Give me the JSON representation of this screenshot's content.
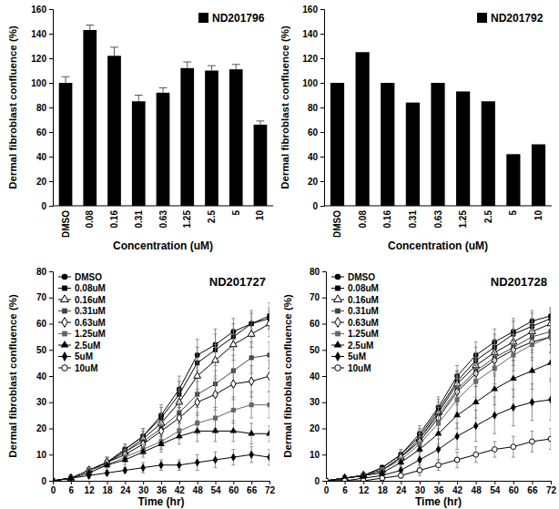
{
  "chart_data": [
    {
      "type": "bar",
      "x_label": "Concentration (uM)",
      "y_label": "Dermal fibroblast confluence (%)",
      "categories": [
        "DMSO",
        "0.08",
        "0.16",
        "0.31",
        "0.63",
        "1.25",
        "2.5",
        "5",
        "10"
      ],
      "series": [
        {
          "name": "ND201796",
          "color": "#000000",
          "values": [
            100,
            143,
            122,
            85,
            92,
            112,
            110,
            111,
            66
          ],
          "errors": [
            5,
            4,
            7,
            5,
            4,
            5,
            4,
            4,
            3
          ]
        }
      ],
      "ylim": [
        0,
        160
      ],
      "yticks": [
        0,
        20,
        40,
        60,
        80,
        100,
        120,
        140,
        160
      ],
      "legend": "upper right"
    },
    {
      "type": "bar",
      "x_label": "Concentration (uM)",
      "y_label": "Dermal fibroblast confluence (%)",
      "categories": [
        "DMSO",
        "0.08",
        "0.16",
        "0.31",
        "0.63",
        "1.25",
        "2.5",
        "5",
        "10"
      ],
      "series": [
        {
          "name": "ND201792",
          "color": "#000000",
          "values": [
            100,
            125,
            100,
            84,
            100,
            93,
            85,
            42,
            50
          ]
        }
      ],
      "ylim": [
        0,
        160
      ],
      "yticks": [
        0,
        20,
        40,
        60,
        80,
        100,
        120,
        140,
        160
      ],
      "legend": "upper right"
    },
    {
      "type": "line",
      "title": "ND201727",
      "x_label": "Time (hr)",
      "y_label": "Dermal fibroblast confluence (%)",
      "x": [
        0,
        6,
        12,
        18,
        24,
        30,
        36,
        42,
        48,
        54,
        60,
        66,
        72
      ],
      "xlim": [
        0,
        72
      ],
      "xticks": [
        0,
        6,
        12,
        18,
        24,
        30,
        36,
        42,
        48,
        54,
        60,
        66,
        72
      ],
      "ylim": [
        0,
        80
      ],
      "yticks": [
        0,
        10,
        20,
        30,
        40,
        50,
        60,
        70,
        80
      ],
      "legend": "upper left",
      "series": [
        {
          "name": "DMSO",
          "color": "#000000",
          "marker": "circle",
          "values": [
            0,
            1,
            4,
            7,
            12,
            17,
            25,
            35,
            48,
            52,
            57,
            60,
            62
          ],
          "errors": [
            0,
            1,
            1,
            2,
            2,
            3,
            4,
            5,
            6,
            6,
            5,
            4,
            4
          ]
        },
        {
          "name": "0.08uM",
          "color": "#000000",
          "marker": "square",
          "values": [
            0,
            1,
            4,
            7,
            12,
            17,
            24,
            33,
            45,
            50,
            55,
            60,
            63
          ],
          "errors": [
            0,
            1,
            1,
            2,
            2,
            3,
            4,
            5,
            6,
            6,
            5,
            5,
            5
          ]
        },
        {
          "name": "0.16uM",
          "color": "#000000",
          "marker": "open-triangle",
          "values": [
            0,
            1,
            4,
            7,
            11,
            16,
            22,
            30,
            40,
            46,
            52,
            56,
            60
          ],
          "errors": [
            0,
            1,
            1,
            2,
            2,
            3,
            4,
            5,
            6,
            6,
            6,
            5,
            5
          ]
        },
        {
          "name": "0.31uM",
          "color": "#444444",
          "marker": "square",
          "values": [
            0,
            1,
            4,
            7,
            11,
            15,
            20,
            26,
            33,
            37,
            42,
            47,
            48
          ],
          "errors": [
            0,
            1,
            1,
            1,
            2,
            3,
            3,
            4,
            5,
            5,
            6,
            6,
            5
          ]
        },
        {
          "name": "0.63uM",
          "color": "#000000",
          "marker": "open-diamond",
          "values": [
            0,
            1,
            4,
            7,
            10,
            14,
            19,
            24,
            30,
            33,
            37,
            38,
            40
          ],
          "errors": [
            0,
            1,
            1,
            1,
            2,
            3,
            3,
            4,
            5,
            6,
            6,
            6,
            6
          ]
        },
        {
          "name": "1.25uM",
          "color": "#666666",
          "marker": "square",
          "values": [
            0,
            1,
            4,
            6,
            9,
            12,
            15,
            19,
            22,
            24,
            27,
            29,
            29
          ],
          "errors": [
            0,
            1,
            1,
            1,
            2,
            2,
            3,
            3,
            4,
            4,
            5,
            5,
            5
          ]
        },
        {
          "name": "2.5uM",
          "color": "#000000",
          "marker": "triangle",
          "values": [
            0,
            1,
            3,
            6,
            8,
            11,
            14,
            17,
            19,
            19,
            19,
            18,
            18
          ],
          "errors": [
            0,
            1,
            1,
            1,
            2,
            2,
            3,
            3,
            4,
            4,
            4,
            4,
            3
          ]
        },
        {
          "name": "5uM",
          "color": "#000000",
          "marker": "diamond",
          "values": [
            0,
            1,
            2,
            3,
            4,
            5,
            6,
            6,
            7,
            8,
            9,
            10,
            9
          ],
          "errors": [
            0,
            1,
            1,
            1,
            1,
            2,
            2,
            2,
            3,
            3,
            3,
            3,
            3
          ]
        },
        {
          "name": "10uM",
          "color": "#000000",
          "marker": "open-circle",
          "values": [
            null,
            null,
            null,
            null,
            null,
            null,
            null,
            null,
            null,
            null,
            null,
            null,
            null
          ],
          "errors": [
            null,
            null,
            null,
            null,
            null,
            null,
            null,
            null,
            null,
            null,
            null,
            null,
            null
          ]
        }
      ]
    },
    {
      "type": "line",
      "title": "ND201728",
      "x_label": "Time (hr)",
      "y_label": "Dermal fibroblast confluence (%)",
      "x": [
        0,
        6,
        12,
        18,
        24,
        30,
        36,
        42,
        48,
        54,
        60,
        66,
        72
      ],
      "xlim": [
        0,
        72
      ],
      "xticks": [
        0,
        6,
        12,
        18,
        24,
        30,
        36,
        42,
        48,
        54,
        60,
        66,
        72
      ],
      "ylim": [
        0,
        80
      ],
      "yticks": [
        0,
        10,
        20,
        30,
        40,
        50,
        60,
        70,
        80
      ],
      "legend": "upper left",
      "series": [
        {
          "name": "DMSO",
          "color": "#000000",
          "marker": "circle",
          "values": [
            0,
            1,
            2,
            5,
            10,
            18,
            28,
            40,
            48,
            53,
            57,
            61,
            63
          ],
          "errors": [
            0,
            0,
            1,
            1,
            2,
            3,
            4,
            4,
            5,
            5,
            5,
            4,
            3
          ]
        },
        {
          "name": "0.08uM",
          "color": "#000000",
          "marker": "square",
          "values": [
            0,
            1,
            2,
            5,
            10,
            17,
            27,
            38,
            46,
            51,
            56,
            59,
            62
          ],
          "errors": [
            0,
            0,
            1,
            1,
            2,
            3,
            4,
            4,
            5,
            5,
            5,
            5,
            4
          ]
        },
        {
          "name": "0.16uM",
          "color": "#000000",
          "marker": "open-triangle",
          "values": [
            0,
            1,
            2,
            4,
            9,
            16,
            26,
            37,
            44,
            49,
            53,
            57,
            60
          ],
          "errors": [
            0,
            0,
            1,
            1,
            2,
            3,
            4,
            5,
            5,
            5,
            5,
            5,
            5
          ]
        },
        {
          "name": "0.31uM",
          "color": "#444444",
          "marker": "square",
          "values": [
            0,
            1,
            2,
            4,
            9,
            16,
            25,
            35,
            42,
            47,
            51,
            55,
            57
          ],
          "errors": [
            0,
            0,
            1,
            1,
            2,
            3,
            4,
            5,
            5,
            5,
            5,
            5,
            5
          ]
        },
        {
          "name": "0.63uM",
          "color": "#000000",
          "marker": "open-diamond",
          "values": [
            0,
            1,
            2,
            4,
            9,
            15,
            24,
            34,
            41,
            46,
            50,
            53,
            55
          ],
          "errors": [
            0,
            0,
            1,
            1,
            2,
            3,
            4,
            5,
            5,
            6,
            6,
            6,
            6
          ]
        },
        {
          "name": "1.25uM",
          "color": "#666666",
          "marker": "square",
          "values": [
            0,
            1,
            2,
            4,
            8,
            14,
            22,
            31,
            38,
            43,
            48,
            52,
            55
          ],
          "errors": [
            0,
            0,
            1,
            1,
            2,
            3,
            4,
            5,
            6,
            6,
            6,
            6,
            6
          ]
        },
        {
          "name": "2.5uM",
          "color": "#000000",
          "marker": "triangle",
          "values": [
            0,
            1,
            2,
            3,
            7,
            12,
            18,
            25,
            30,
            35,
            39,
            42,
            45
          ],
          "errors": [
            0,
            0,
            1,
            1,
            2,
            3,
            4,
            5,
            6,
            6,
            7,
            7,
            7
          ]
        },
        {
          "name": "5uM",
          "color": "#000000",
          "marker": "diamond",
          "values": [
            0,
            0,
            1,
            2,
            4,
            8,
            12,
            17,
            21,
            25,
            28,
            30,
            31
          ],
          "errors": [
            0,
            0,
            1,
            1,
            2,
            3,
            4,
            5,
            6,
            7,
            7,
            7,
            8
          ]
        },
        {
          "name": "10uM",
          "color": "#000000",
          "marker": "open-circle",
          "values": [
            0,
            0,
            0,
            1,
            2,
            4,
            6,
            8,
            10,
            12,
            13,
            15,
            16
          ],
          "errors": [
            0,
            0,
            0,
            1,
            1,
            2,
            2,
            3,
            3,
            3,
            4,
            4,
            4
          ]
        }
      ]
    }
  ]
}
